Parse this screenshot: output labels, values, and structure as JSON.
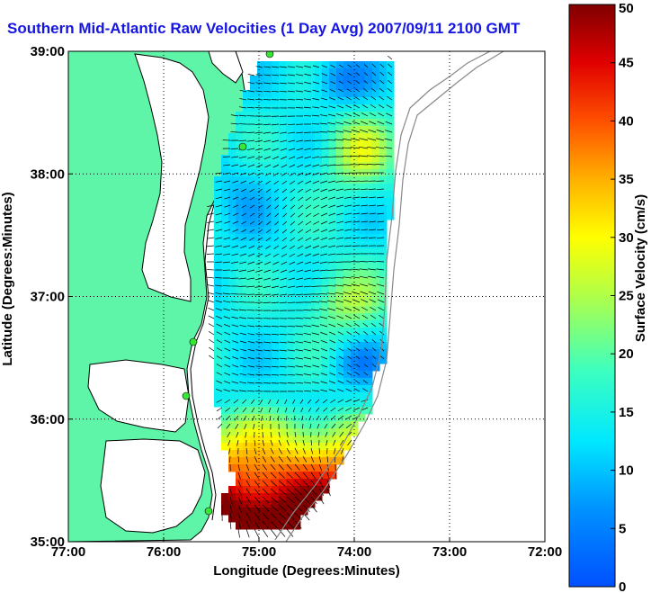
{
  "title": "Southern Mid-Atlantic Raw Velocities (1 Day Avg) 2007/09/11 2100 GMT",
  "map": {
    "x_ticks": [
      {
        "lon": -77,
        "label": "77:00"
      },
      {
        "lon": -76,
        "label": "76:00"
      },
      {
        "lon": -75,
        "label": "75:00"
      },
      {
        "lon": -74,
        "label": "74:00"
      },
      {
        "lon": -73,
        "label": "73:00"
      },
      {
        "lon": -72,
        "label": "72:00"
      }
    ],
    "y_ticks": [
      {
        "lat": 39,
        "label": "39:00"
      },
      {
        "lat": 38,
        "label": "38:00"
      },
      {
        "lat": 37,
        "label": "37:00"
      },
      {
        "lat": 36,
        "label": "36:00"
      },
      {
        "lat": 35,
        "label": "35:00"
      }
    ],
    "xlabel": "Longitude (Degrees:Minutes)",
    "ylabel": "Latitude (Degrees:Minutes)",
    "lon_range": [
      -77,
      -72
    ],
    "lat_range": [
      35,
      39
    ],
    "grid": true,
    "land_color": "#5ff5a8",
    "coast_color": "#000000"
  },
  "colorbar": {
    "label": "Surface Velocity (cm/s)",
    "range": [
      0,
      50
    ],
    "ticks": [
      "0",
      "5",
      "10",
      "15",
      "20",
      "25",
      "30",
      "35",
      "40",
      "45",
      "50"
    ],
    "colormap": "jet"
  }
}
